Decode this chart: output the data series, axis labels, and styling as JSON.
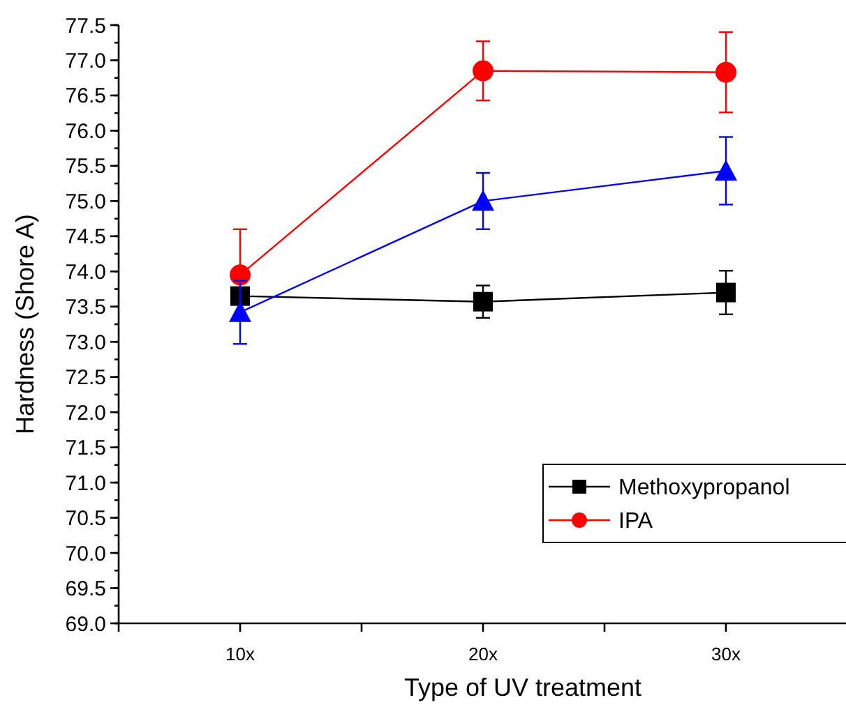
{
  "chart_data": {
    "type": "line",
    "xlabel": "Type of UV treatment",
    "ylabel": "Hardness (Shore A)",
    "categories": [
      "10x",
      "20x",
      "30x"
    ],
    "ylim": [
      69,
      77.5
    ],
    "yticks": [
      {
        "value": 69,
        "label": "69.0"
      },
      69.5,
      {
        "value": 70,
        "label": "70.0"
      },
      70.5,
      {
        "value": 71,
        "label": "71.0"
      },
      71.5,
      {
        "value": 72,
        "label": "72.0"
      },
      72.5,
      {
        "value": 73,
        "label": "73.0"
      },
      73.5,
      {
        "value": 74,
        "label": "74.0"
      },
      74.5,
      {
        "value": 75,
        "label": "75.0"
      },
      75.5,
      {
        "value": 76,
        "label": "76.0"
      },
      76.5,
      {
        "value": 77,
        "label": "77.0"
      },
      77.5
    ],
    "legend": "bottom right",
    "grid": false,
    "series": [
      {
        "name": "Methoxypropanol",
        "color": "#000000",
        "marker": "square",
        "values": [
          73.65,
          73.57,
          73.7
        ],
        "errors": [
          null,
          0.23,
          0.31
        ]
      },
      {
        "name": "IPA",
        "color": "#ff0000",
        "marker": "circle",
        "values": [
          73.95,
          76.85,
          76.83
        ],
        "errors": [
          0.65,
          0.42,
          0.57
        ]
      },
      {
        "color": "#0000ff",
        "marker": "triangle",
        "values": [
          73.42,
          75.0,
          75.43
        ],
        "errors": [
          0.45,
          0.4,
          0.48
        ]
      }
    ]
  }
}
